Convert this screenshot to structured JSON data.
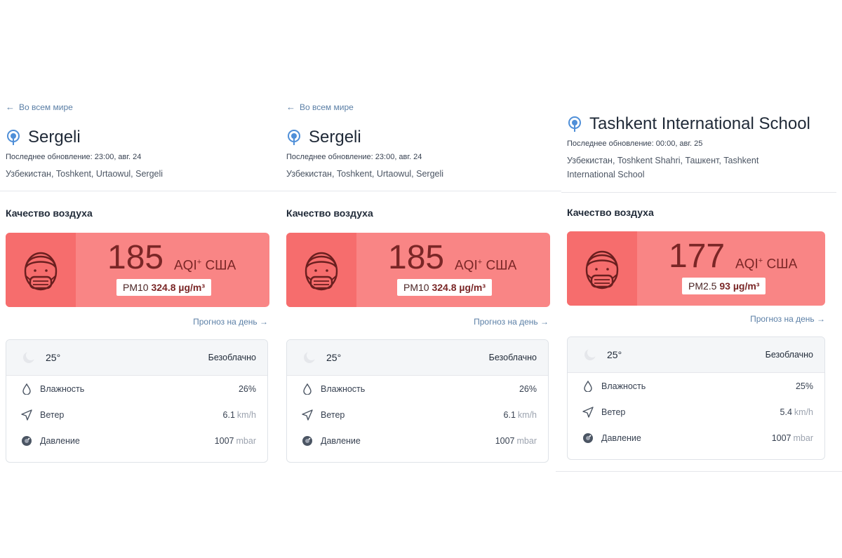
{
  "panels": [
    {
      "back_label": "Во всем мире",
      "title": "Sergeli",
      "updated": "Последнее обновление: 23:00, авг. 24",
      "address": "Узбекистан, Toshkent, Urtaowul, Sergeli",
      "aq_heading": "Качество воздуха",
      "aqi_value": "185",
      "aqi_unit": "AQI",
      "aqi_sup": "+",
      "aqi_country": "США",
      "pollutant_name": "PM10",
      "pollutant_value": "324.8 µg/m³",
      "forecast_link": "Прогноз на день →",
      "temperature": "25°",
      "condition": "Безоблачно",
      "humidity_label": "Влажность",
      "humidity_value": "26%",
      "wind_label": "Ветер",
      "wind_value": "6.1",
      "wind_unit": "km/h",
      "pressure_label": "Давление",
      "pressure_value": "1007",
      "pressure_unit": "mbar"
    },
    {
      "back_label": "Во всем мире",
      "title": "Sergeli",
      "updated": "Последнее обновление: 23:00, авг. 24",
      "address": "Узбекистан, Toshkent, Urtaowul, Sergeli",
      "aq_heading": "Качество воздуха",
      "aqi_value": "185",
      "aqi_unit": "AQI",
      "aqi_sup": "+",
      "aqi_country": "США",
      "pollutant_name": "PM10",
      "pollutant_value": "324.8 µg/m³",
      "forecast_link": "Прогноз на день →",
      "temperature": "25°",
      "condition": "Безоблачно",
      "humidity_label": "Влажность",
      "humidity_value": "26%",
      "wind_label": "Ветер",
      "wind_value": "6.1",
      "wind_unit": "km/h",
      "pressure_label": "Давление",
      "pressure_value": "1007",
      "pressure_unit": "mbar"
    },
    {
      "back_label": "",
      "title": "Tashkent International School",
      "updated": "Последнее обновление: 00:00, авг. 25",
      "address": "Узбекистан, Toshkent Shahri, Ташкент, Tashkent International School",
      "aq_heading": "Качество воздуха",
      "aqi_value": "177",
      "aqi_unit": "AQI",
      "aqi_sup": "+",
      "aqi_country": "США",
      "pollutant_name": "PM2.5",
      "pollutant_value": "93 µg/m³",
      "forecast_link": "Прогноз на день →",
      "temperature": "25°",
      "condition": "Безоблачно",
      "humidity_label": "Влажность",
      "humidity_value": "25%",
      "wind_label": "Ветер",
      "wind_value": "5.4",
      "wind_unit": "km/h",
      "pressure_label": "Давление",
      "pressure_value": "1007",
      "pressure_unit": "mbar"
    }
  ],
  "colors": {
    "aqi_card": "#f98585",
    "aqi_face_box": "#f66d6d",
    "aqi_text": "#7a2626",
    "link": "#5b7fa6"
  }
}
